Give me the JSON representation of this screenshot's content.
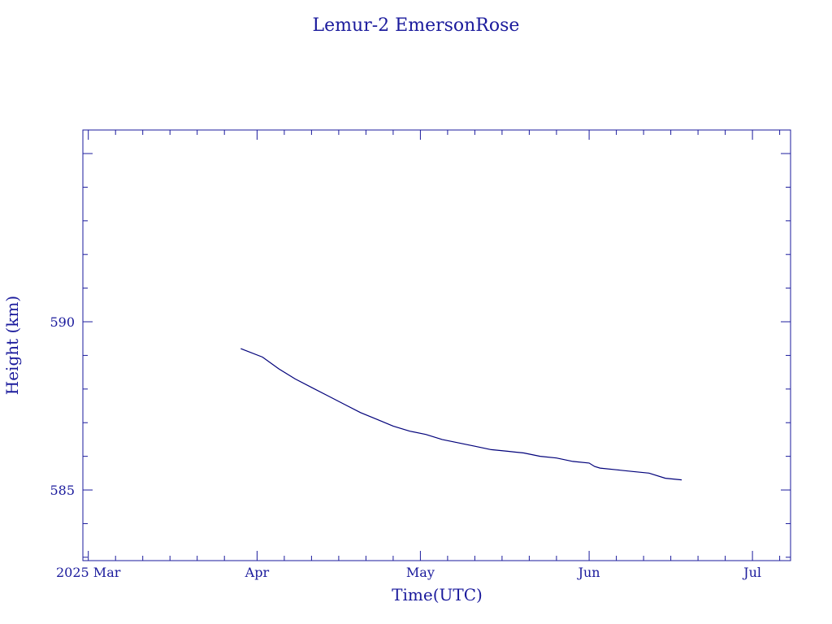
{
  "chart_data": {
    "type": "line",
    "title": "Lemur-2 EmersonRose",
    "xlabel": "Time(UTC)",
    "ylabel": "Height (km)",
    "x_tick_labels": [
      "2025 Mar",
      "Apr",
      "May",
      "Jun",
      "Jul"
    ],
    "x_tick_dates": [
      "2025-03-01",
      "2025-04-01",
      "2025-05-01",
      "2025-06-01",
      "2025-07-01"
    ],
    "y_tick_labels": [
      "585",
      "590"
    ],
    "y_tick_values": [
      585,
      590
    ],
    "xlim": [
      "2025-02-28",
      "2025-07-08"
    ],
    "ylim": [
      582.9,
      595.7
    ],
    "grid": false,
    "colors": {
      "axis": "#1a1a9c",
      "line": "#00007a",
      "text": "#1a1a9c"
    },
    "series": [
      {
        "x": [
          "2025-03-29",
          "2025-04-02",
          "2025-04-05",
          "2025-04-08",
          "2025-04-11",
          "2025-04-14",
          "2025-04-17",
          "2025-04-20",
          "2025-04-23",
          "2025-04-26",
          "2025-04-29",
          "2025-05-02",
          "2025-05-05",
          "2025-05-08",
          "2025-05-11",
          "2025-05-14",
          "2025-05-17",
          "2025-05-20",
          "2025-05-23",
          "2025-05-26",
          "2025-05-29",
          "2025-06-01",
          "2025-06-02",
          "2025-06-03",
          "2025-06-06",
          "2025-06-09",
          "2025-06-12",
          "2025-06-15",
          "2025-06-18"
        ],
        "y": [
          589.2,
          588.95,
          588.6,
          588.3,
          588.05,
          587.8,
          587.55,
          587.3,
          587.1,
          586.9,
          586.75,
          586.65,
          586.5,
          586.4,
          586.3,
          586.2,
          586.15,
          586.1,
          586.0,
          585.95,
          585.85,
          585.8,
          585.7,
          585.65,
          585.6,
          585.55,
          585.5,
          585.35,
          585.3
        ]
      }
    ]
  }
}
